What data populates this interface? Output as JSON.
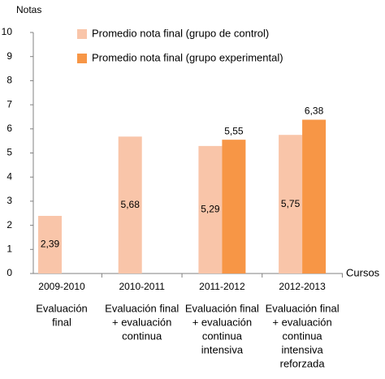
{
  "chart_data": {
    "type": "bar",
    "y_label": "Notas",
    "x_label": "Cursos",
    "categories": [
      "2009-2010",
      "2010-2011",
      "2011-2012",
      "2012-2013"
    ],
    "descriptions": [
      [
        "Evaluación",
        "final"
      ],
      [
        "Evaluación final",
        "+ evaluación",
        "continua"
      ],
      [
        "Evaluación final",
        "+ evaluación",
        "continua",
        "intensiva"
      ],
      [
        "Evaluación final",
        "+ evaluación",
        "continua",
        "intensiva",
        "reforzada"
      ]
    ],
    "series": [
      {
        "name": "Promedio nota final (grupo de control)",
        "color": "#f9c5a9",
        "values": [
          2.39,
          5.68,
          5.29,
          5.75
        ],
        "value_labels": [
          "2,39",
          "5,68",
          "5,29",
          "5,75"
        ]
      },
      {
        "name": "Promedio nota final (grupo experimental)",
        "color": "#f79646",
        "values": [
          null,
          null,
          5.55,
          6.38
        ],
        "value_labels": [
          null,
          null,
          "5,55",
          "6,38"
        ]
      }
    ],
    "ylim": [
      0,
      10
    ],
    "yticks": [
      0,
      1,
      2,
      3,
      4,
      5,
      6,
      7,
      8,
      9,
      10
    ],
    "grid": false
  }
}
